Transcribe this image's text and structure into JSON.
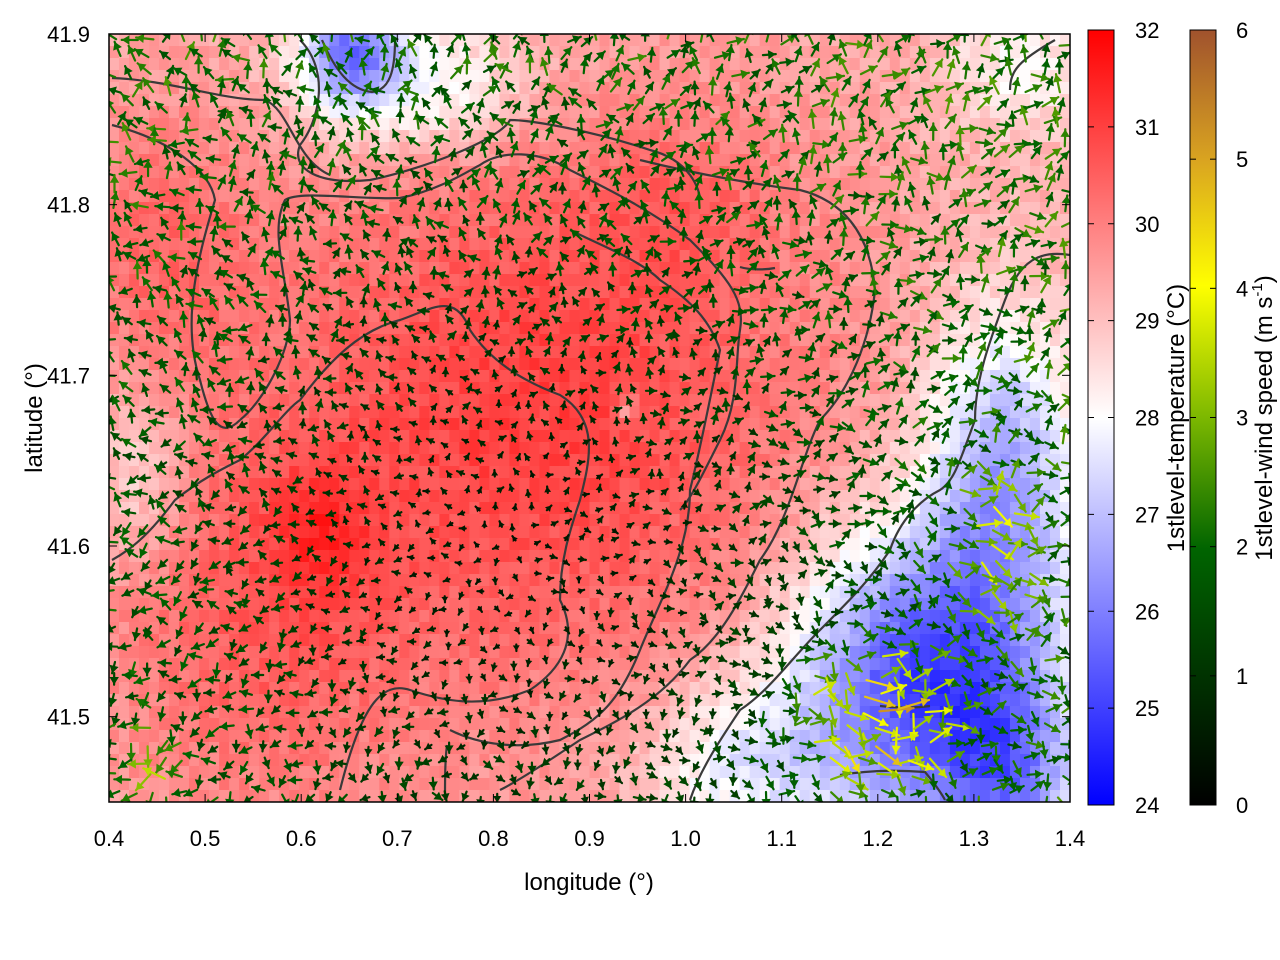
{
  "chart_data": {
    "type": "heatmap",
    "title": "",
    "xlabel": "longitude (°)",
    "ylabel": "latitude (°)",
    "xlim": [
      0.4,
      1.4
    ],
    "ylim": [
      41.45,
      41.9
    ],
    "xticks": [
      "0.4",
      "0.5",
      "0.6",
      "0.7",
      "0.8",
      "0.9",
      "1.0",
      "1.1",
      "1.2",
      "1.3",
      "1.4"
    ],
    "yticks": [
      "41.5",
      "41.6",
      "41.7",
      "41.8",
      "41.9"
    ],
    "grid": false,
    "colorbars": [
      {
        "id": "temperature",
        "label": "1stlevel-temperature (°C)",
        "range": [
          24,
          32
        ],
        "ticks": [
          "24",
          "25",
          "26",
          "27",
          "28",
          "29",
          "30",
          "31",
          "32"
        ],
        "colors": [
          "#0000ff",
          "#ffffff",
          "#ff0000"
        ]
      },
      {
        "id": "wind",
        "label_text": "1stlevel-wind speed (m s",
        "label_sup": "-1",
        "label_end": ")",
        "range": [
          0,
          6
        ],
        "ticks": [
          "0",
          "1",
          "2",
          "3",
          "4",
          "5",
          "6"
        ],
        "colors": [
          "#000000",
          "#006400",
          "#7cb800",
          "#ffff00",
          "#daa520",
          "#a0522d"
        ]
      }
    ],
    "temperature_field": {
      "base": 29.3,
      "features": [
        {
          "lon": 0.85,
          "lat": 41.68,
          "amp": 1.7,
          "rlon": 0.3,
          "rlat": 0.17
        },
        {
          "lon": 0.55,
          "lat": 41.55,
          "amp": 1.0,
          "rlon": 0.16,
          "rlat": 0.12
        },
        {
          "lon": 0.45,
          "lat": 41.78,
          "amp": 0.9,
          "rlon": 0.1,
          "rlat": 0.08
        },
        {
          "lon": 0.62,
          "lat": 41.61,
          "amp": 0.8,
          "rlon": 0.05,
          "rlat": 0.04
        },
        {
          "lon": 1.0,
          "lat": 41.8,
          "amp": 0.5,
          "rlon": 0.1,
          "rlat": 0.05
        },
        {
          "lon": 1.25,
          "lat": 41.52,
          "amp": -4.4,
          "rlon": 0.14,
          "rlat": 0.09
        },
        {
          "lon": 1.34,
          "lat": 41.46,
          "amp": -2.0,
          "rlon": 0.07,
          "rlat": 0.05
        },
        {
          "lon": 1.33,
          "lat": 41.65,
          "amp": -2.6,
          "rlon": 0.08,
          "rlat": 0.09
        },
        {
          "lon": 1.05,
          "lat": 41.47,
          "amp": -1.5,
          "rlon": 0.1,
          "rlat": 0.05
        },
        {
          "lon": 0.65,
          "lat": 41.89,
          "amp": -3.0,
          "rlon": 0.05,
          "rlat": 0.03
        },
        {
          "lon": 0.72,
          "lat": 41.87,
          "amp": -1.8,
          "rlon": 0.12,
          "rlat": 0.04
        },
        {
          "lon": 1.35,
          "lat": 41.88,
          "amp": -1.2,
          "rlon": 0.08,
          "rlat": 0.04
        },
        {
          "lon": 0.94,
          "lat": 41.68,
          "amp": -1.5,
          "rlon": 0.01,
          "rlat": 0.008
        },
        {
          "lon": 0.43,
          "lat": 41.64,
          "amp": -1.0,
          "rlon": 0.05,
          "rlat": 0.05
        }
      ]
    },
    "wind_field": {
      "calm_center": {
        "lon": 0.82,
        "lat": 41.6
      },
      "strong_zones": [
        {
          "lon": 1.2,
          "lat": 41.5,
          "speed": 4.2,
          "rlon": 0.12,
          "rlat": 0.06
        },
        {
          "lon": 1.32,
          "lat": 41.6,
          "speed": 3.4,
          "rlon": 0.08,
          "rlat": 0.08
        },
        {
          "lon": 0.45,
          "lat": 41.47,
          "speed": 3.2,
          "rlon": 0.06,
          "rlat": 0.04
        }
      ]
    }
  }
}
